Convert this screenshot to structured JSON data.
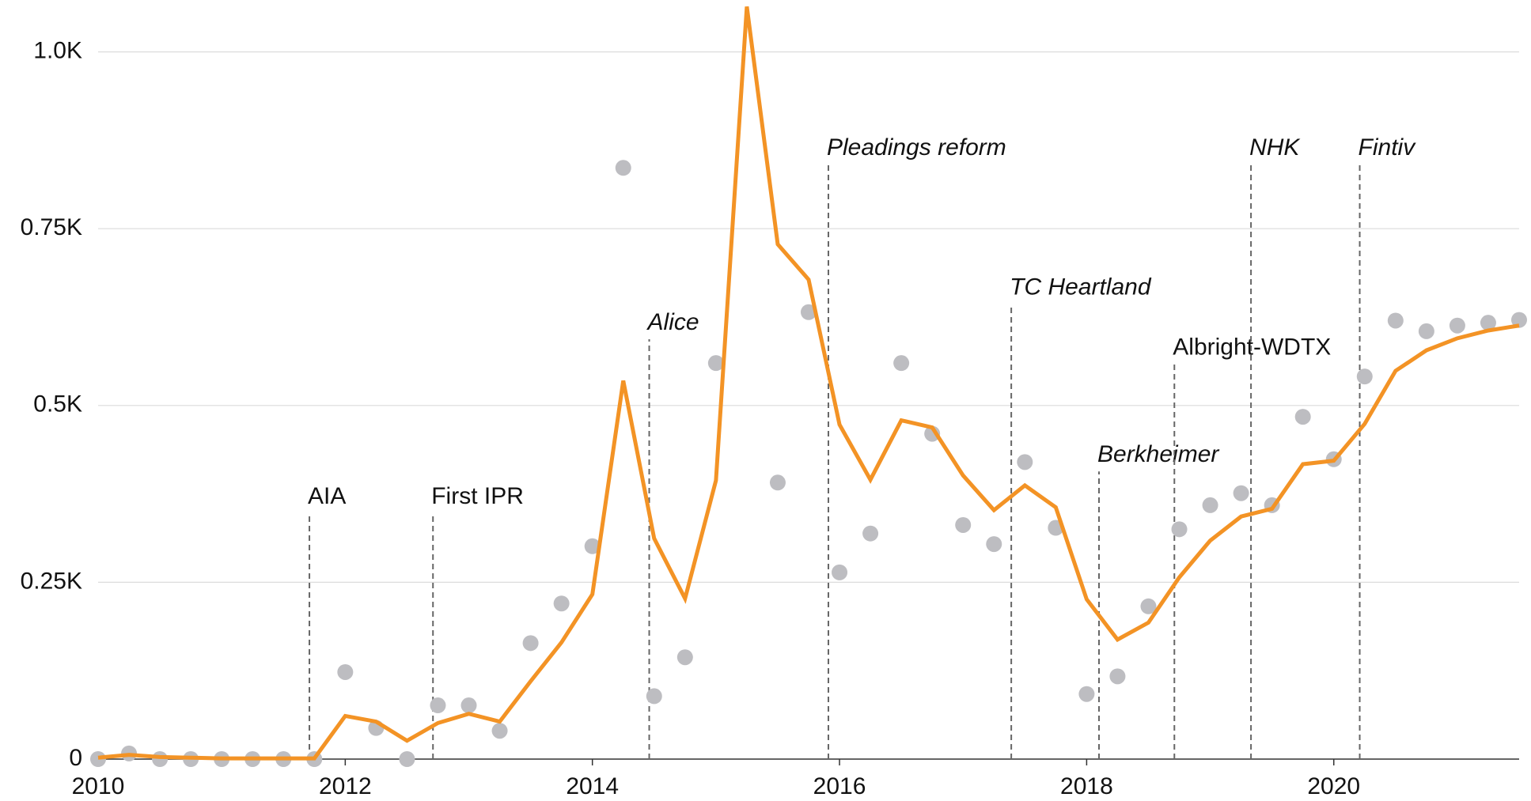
{
  "chart_data": {
    "type": "line",
    "x": [
      2010,
      2010.25,
      2010.5,
      2010.75,
      2011,
      2011.25,
      2011.5,
      2011.75,
      2012,
      2012.25,
      2012.5,
      2012.75,
      2013,
      2013.25,
      2013.5,
      2013.75,
      2014,
      2014.25,
      2014.5,
      2014.75,
      2015,
      2015.25,
      2015.5,
      2015.75,
      2016,
      2016.25,
      2016.5,
      2016.75,
      2017,
      2017.25,
      2017.5,
      2017.75,
      2018,
      2018.25,
      2018.5,
      2018.75,
      2019,
      2019.25,
      2019.5,
      2019.75,
      2020,
      2020.25,
      2020.5,
      2020.75,
      2021,
      2021.25,
      2021.5
    ],
    "series": [
      {
        "type": "scatter",
        "color": "#bdbdc1",
        "values": [
          0,
          8,
          0,
          0,
          0,
          0,
          0,
          0,
          123,
          44,
          0,
          76,
          76,
          40,
          164,
          220,
          301,
          836,
          89,
          144,
          560,
          null,
          391,
          632,
          264,
          319,
          560,
          460,
          331,
          304,
          420,
          327,
          92,
          117,
          216,
          325,
          359,
          376,
          359,
          484,
          424,
          541,
          620,
          605,
          613,
          617,
          621
        ]
      },
      {
        "type": "line",
        "color": "#f39325",
        "values": [
          2,
          6,
          3,
          2,
          1,
          1,
          1,
          1,
          61,
          53,
          26,
          51,
          64,
          53,
          110,
          165,
          233,
          535,
          312,
          227,
          394,
          1064,
          728,
          678,
          473,
          395,
          479,
          469,
          401,
          352,
          387,
          356,
          226,
          169,
          193,
          257,
          309,
          343,
          354,
          417,
          422,
          474,
          549,
          578,
          595,
          606,
          613
        ]
      }
    ],
    "xlim": [
      2010,
      2021.5
    ],
    "xticks": [
      2010,
      2012,
      2014,
      2016,
      2018,
      2020
    ],
    "ylim": [
      0,
      1070
    ],
    "yticks": [
      0,
      {
        "value": 250,
        "label": "0.25K"
      },
      {
        "value": 500,
        "label": "0.5K"
      },
      {
        "value": 750,
        "label": "0.75K"
      },
      {
        "value": 1000,
        "label": "1.0K"
      }
    ],
    "grid": true,
    "annotations": [
      {
        "text": "AIA",
        "x": 2011.71,
        "y": 370,
        "style": "normal"
      },
      {
        "text": "First IPR",
        "x": 2012.71,
        "y": 370,
        "style": "normal"
      },
      {
        "text": "Alice",
        "x": 2014.46,
        "y": 616,
        "style": "italic"
      },
      {
        "text": "Pleadings reform",
        "x": 2015.91,
        "y": 863,
        "style": "italic"
      },
      {
        "text": "TC Heartland",
        "x": 2017.39,
        "y": 666,
        "style": "italic"
      },
      {
        "text": "Berkheimer",
        "x": 2018.1,
        "y": 429,
        "style": "italic"
      },
      {
        "text": "Albright-WDTX",
        "x": 2018.71,
        "y": 581,
        "style": "normal"
      },
      {
        "text": "NHK",
        "x": 2019.33,
        "y": 863,
        "style": "italic"
      },
      {
        "text": "Fintiv",
        "x": 2020.21,
        "y": 863,
        "style": "italic"
      }
    ]
  }
}
